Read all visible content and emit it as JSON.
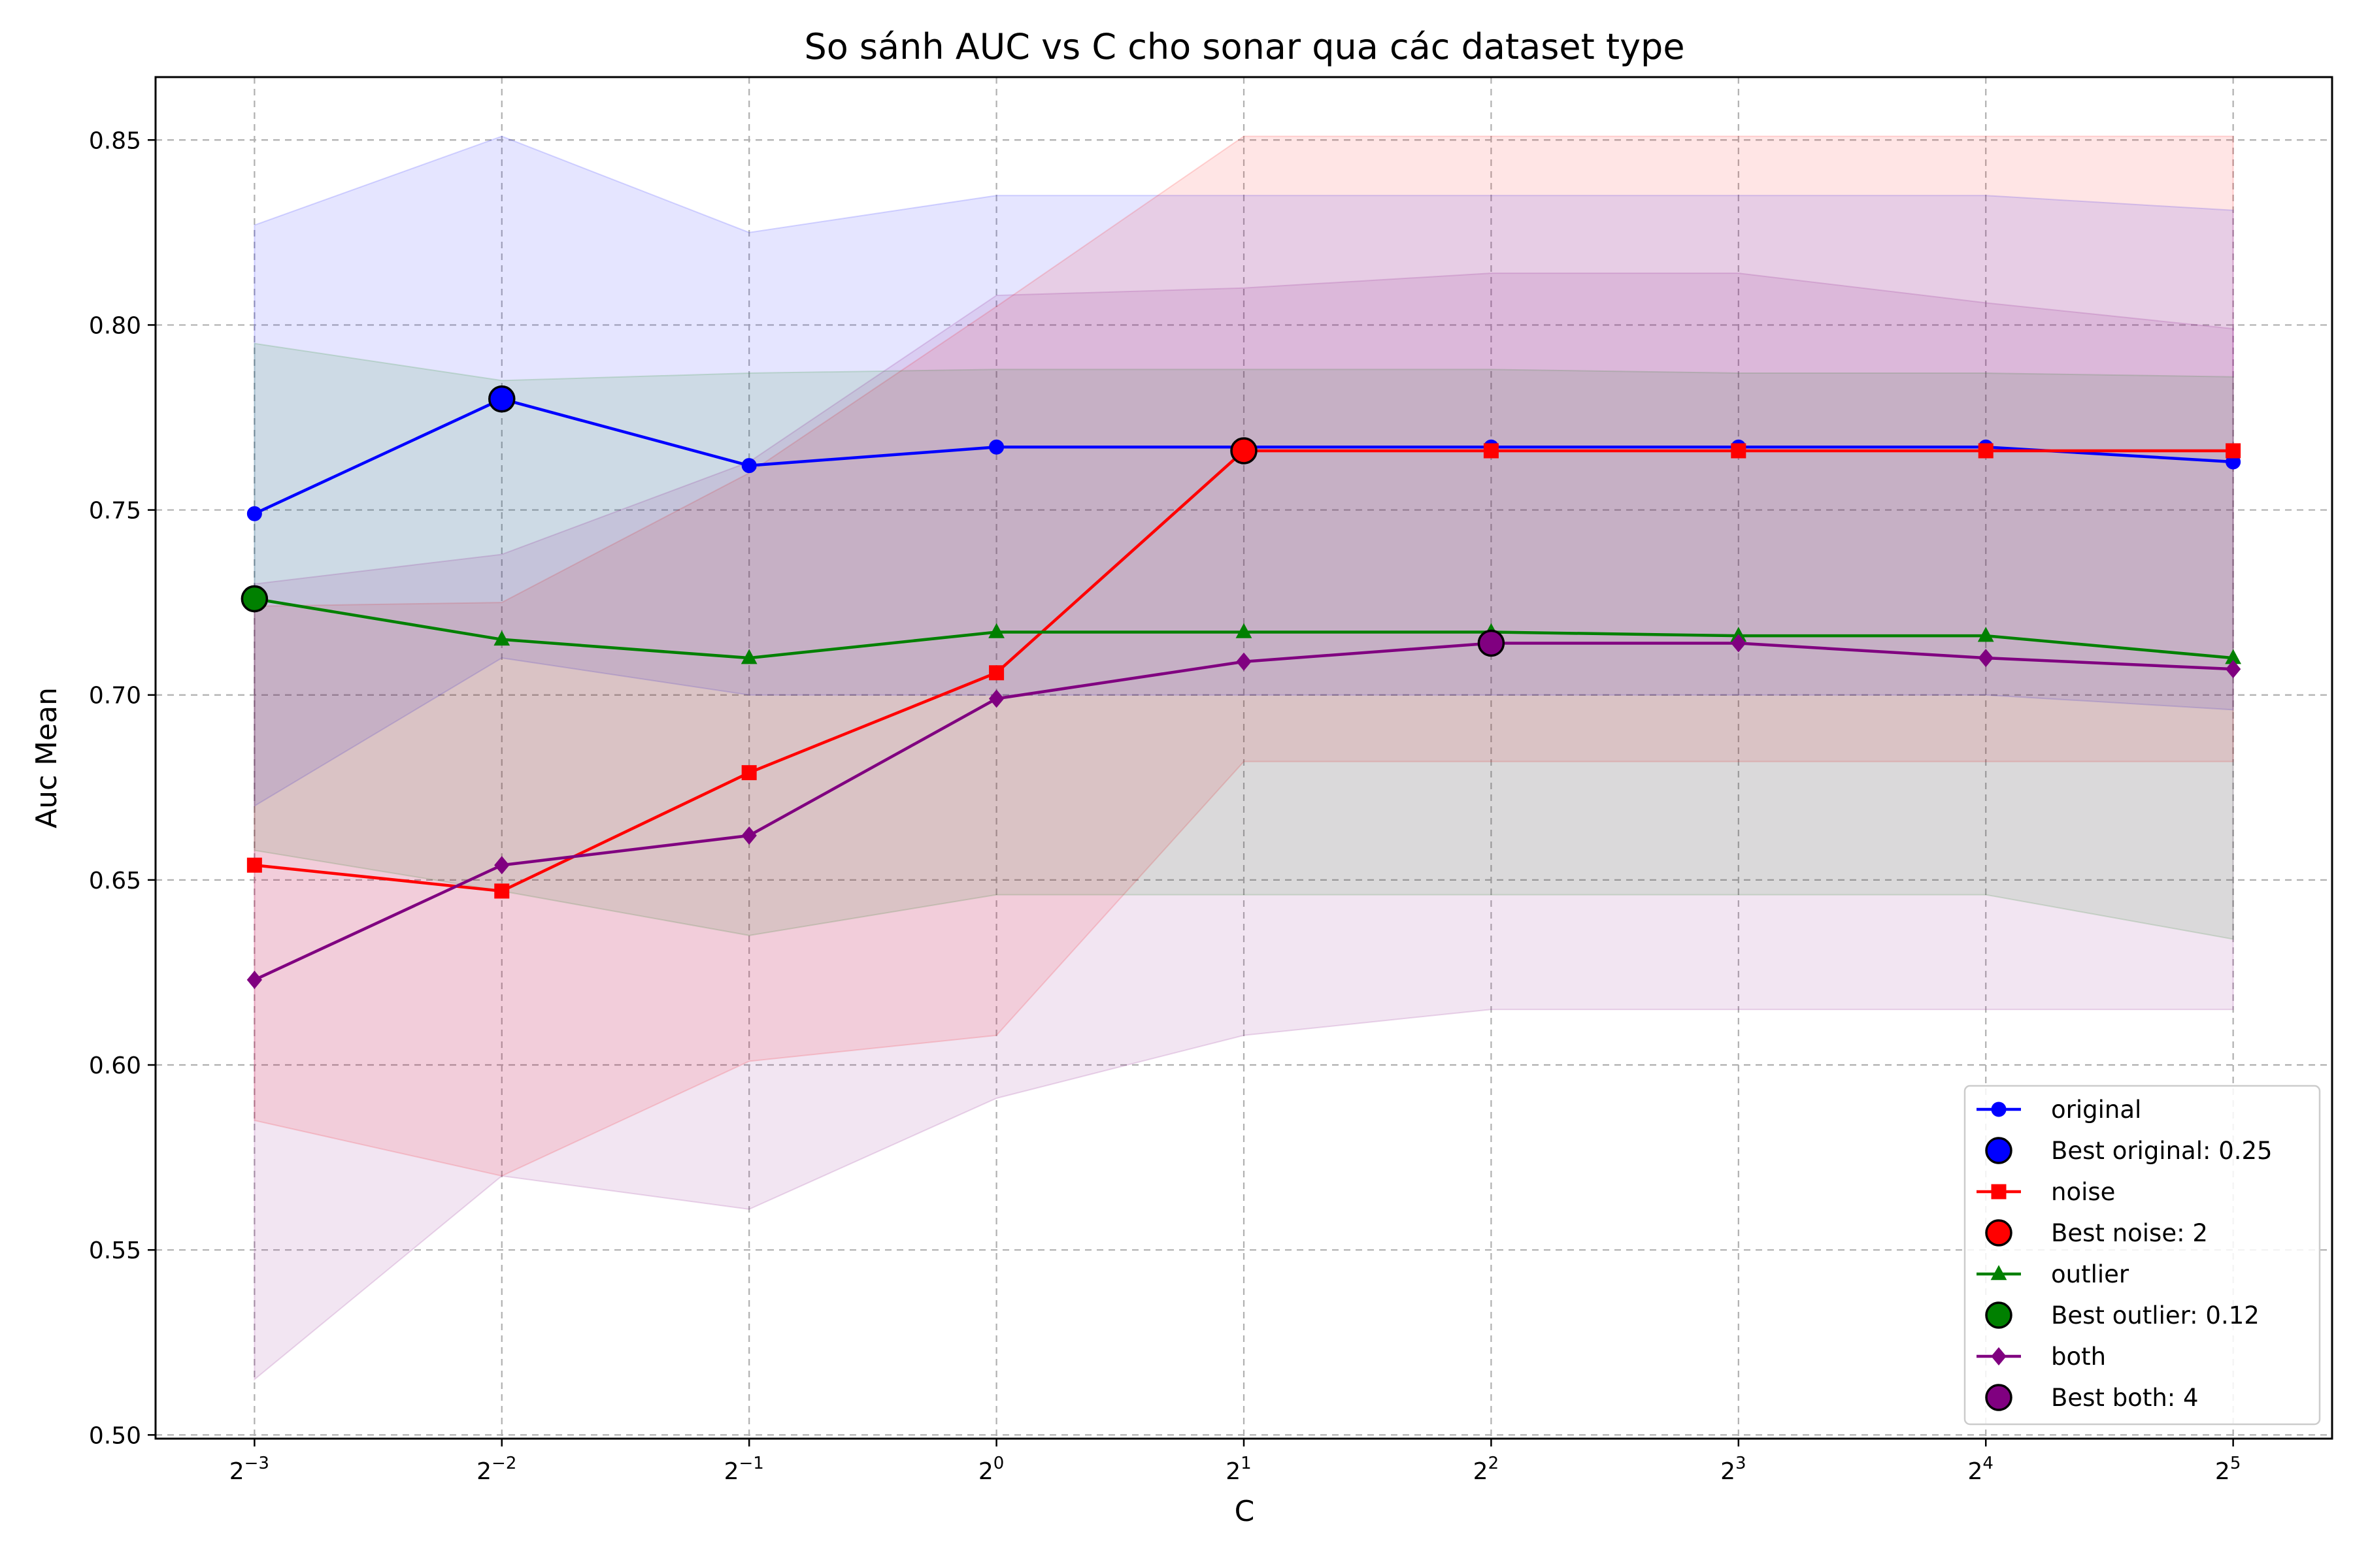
{
  "chart_data": {
    "type": "line",
    "title": "So sánh AUC vs C cho sonar qua các dataset type",
    "xlabel": "C",
    "ylabel": "Auc Mean",
    "x_scale": "log2",
    "x": [
      0.125,
      0.25,
      0.5,
      1,
      2,
      4,
      8,
      16,
      32
    ],
    "x_tick_labels": [
      {
        "base": "2",
        "exp": "−3"
      },
      {
        "base": "2",
        "exp": "−2"
      },
      {
        "base": "2",
        "exp": "−1"
      },
      {
        "base": "2",
        "exp": "0"
      },
      {
        "base": "2",
        "exp": "1"
      },
      {
        "base": "2",
        "exp": "2"
      },
      {
        "base": "2",
        "exp": "3"
      },
      {
        "base": "2",
        "exp": "4"
      },
      {
        "base": "2",
        "exp": "5"
      }
    ],
    "y_ticks": [
      "0.50",
      "0.55",
      "0.60",
      "0.65",
      "0.70",
      "0.75",
      "0.80",
      "0.85"
    ],
    "ylim": [
      0.499,
      0.867
    ],
    "xlim_exp": [
      -3.4,
      5.4
    ],
    "grid": true,
    "legend_position": "lower-right",
    "series": [
      {
        "name": "original",
        "color": "#0000ff",
        "fill": "#0000ff",
        "marker": "circle",
        "values": [
          0.749,
          0.78,
          0.762,
          0.767,
          0.767,
          0.767,
          0.767,
          0.767,
          0.763
        ],
        "upper": [
          0.827,
          0.851,
          0.825,
          0.835,
          0.835,
          0.835,
          0.835,
          0.835,
          0.831
        ],
        "lower": [
          0.67,
          0.71,
          0.7,
          0.7,
          0.7,
          0.7,
          0.7,
          0.7,
          0.696
        ],
        "best": {
          "x": 0.25,
          "y": 0.78,
          "label": "Best original: 0.25"
        }
      },
      {
        "name": "noise",
        "color": "#ff0000",
        "fill": "#ff0000",
        "marker": "square",
        "values": [
          0.654,
          0.647,
          0.679,
          0.706,
          0.766,
          0.766,
          0.766,
          0.766,
          0.766
        ],
        "upper": [
          0.724,
          0.725,
          0.76,
          0.805,
          0.851,
          0.851,
          0.851,
          0.851,
          0.851
        ],
        "lower": [
          0.585,
          0.57,
          0.601,
          0.608,
          0.682,
          0.682,
          0.682,
          0.682,
          0.682
        ],
        "best": {
          "x": 2,
          "y": 0.766,
          "label": "Best noise: 2"
        }
      },
      {
        "name": "outlier",
        "color": "#008000",
        "fill": "#008000",
        "marker": "triangle",
        "values": [
          0.726,
          0.715,
          0.71,
          0.717,
          0.717,
          0.717,
          0.716,
          0.716,
          0.71
        ],
        "upper": [
          0.795,
          0.785,
          0.787,
          0.788,
          0.788,
          0.788,
          0.787,
          0.787,
          0.786
        ],
        "lower": [
          0.658,
          0.647,
          0.635,
          0.646,
          0.646,
          0.646,
          0.646,
          0.646,
          0.634
        ],
        "best": {
          "x": 0.125,
          "y": 0.726,
          "label": "Best outlier: 0.12"
        }
      },
      {
        "name": "both",
        "color": "#800080",
        "fill": "#800080",
        "marker": "diamond",
        "values": [
          0.623,
          0.654,
          0.662,
          0.699,
          0.709,
          0.714,
          0.714,
          0.71,
          0.707
        ],
        "upper": [
          0.73,
          0.738,
          0.763,
          0.808,
          0.81,
          0.814,
          0.814,
          0.806,
          0.799
        ],
        "lower": [
          0.515,
          0.57,
          0.561,
          0.591,
          0.608,
          0.615,
          0.615,
          0.615,
          0.615
        ],
        "best": {
          "x": 4,
          "y": 0.714,
          "label": "Best both: 4"
        }
      }
    ]
  }
}
